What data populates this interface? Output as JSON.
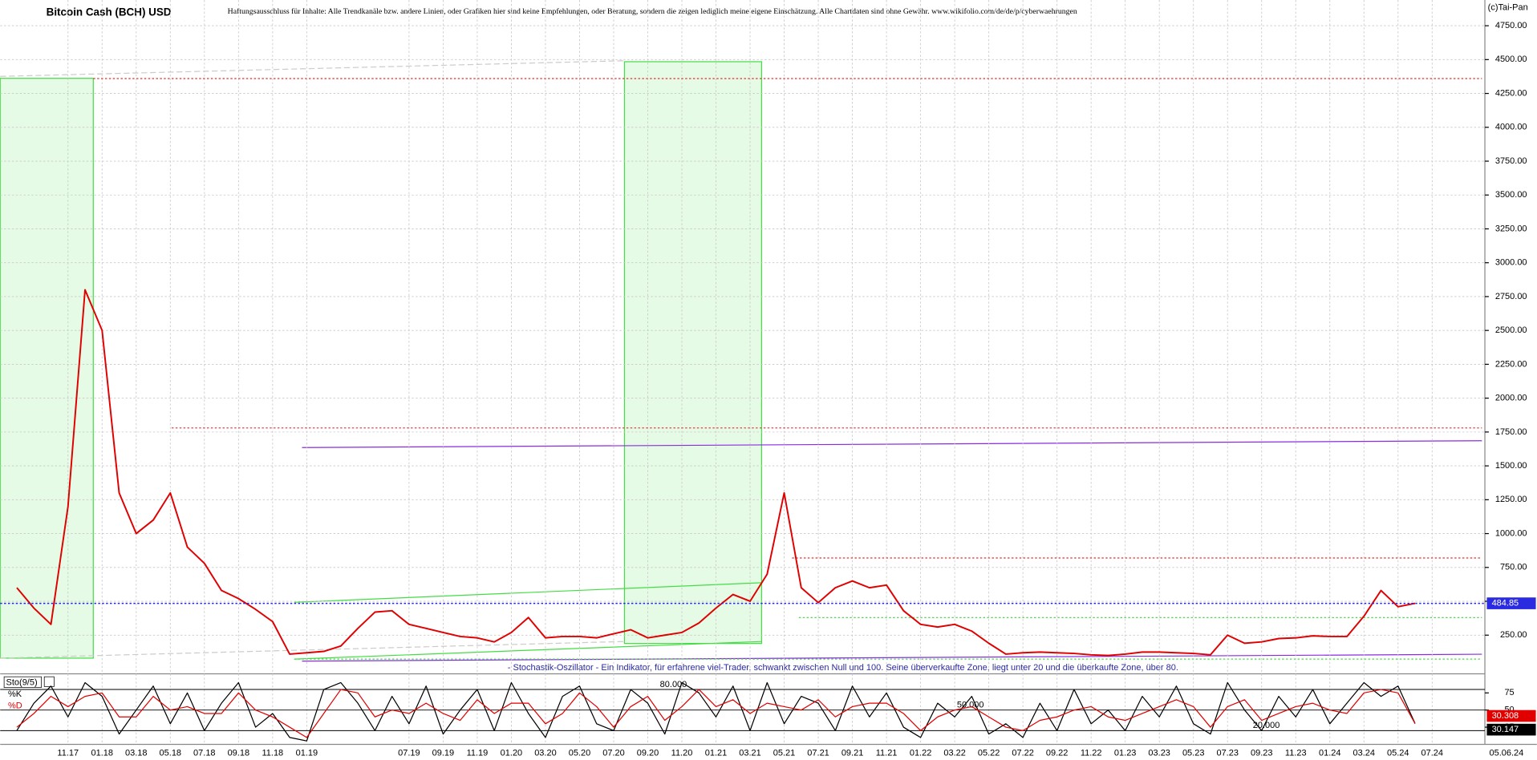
{
  "chart_data": [
    {
      "type": "line",
      "title": "Bitcoin Cash (BCH) USD",
      "disclaimer": "Haftungsausschluss für Inhalte: Alle Trendkanäle bzw. andere Linien, oder Grafiken hier sind keine Empfehlungen, oder Beratung, sondern die zeigen lediglich meine eigene Einschätzung. Alle Chartdaten sind ohne Gewähr.  www.wikifolio.com/de/de/p/cyberwaehrungen",
      "copyright": "(c)Tai-Pan",
      "annotation": "- Stochastik-Oszillator - Ein Indikator, für erfahrene viel-Trader, schwankt zwischen Null und 100. Seine überverkaufte Zone, liegt unter 20 und die überkaufte Zone, über 80.",
      "last_date": "05.06.24",
      "categories": [
        null,
        null,
        null,
        "11.17",
        null,
        "01.18",
        null,
        "03.18",
        null,
        "05.18",
        null,
        "07.18",
        null,
        "09.18",
        null,
        "11.18",
        null,
        "01.19",
        null,
        null,
        null,
        null,
        null,
        "07.19",
        null,
        "09.19",
        null,
        "11.19",
        null,
        "01.20",
        null,
        "03.20",
        null,
        "05.20",
        null,
        "07.20",
        null,
        "09.20",
        null,
        "11.20",
        null,
        "01.21",
        null,
        "03.21",
        null,
        "05.21",
        null,
        "07.21",
        null,
        "09.21",
        null,
        "11.21",
        null,
        "01.22",
        null,
        "03.22",
        null,
        "05.22",
        null,
        "07.22",
        null,
        "09.22",
        null,
        "11.22",
        null,
        "01.23",
        null,
        "03.23",
        null,
        "05.23",
        null,
        "07.23",
        null,
        "09.23",
        null,
        "11.23",
        null,
        "01.24",
        null,
        "03.24",
        null,
        "05.24",
        null,
        "07.24"
      ],
      "series": [
        {
          "color": "#e00000",
          "values": [
            600,
            450,
            330,
            1200,
            2800,
            2500,
            1300,
            1000,
            1100,
            1300,
            900,
            780,
            580,
            520,
            440,
            350,
            110,
            120,
            130,
            170,
            300,
            420,
            430,
            330,
            300,
            270,
            240,
            230,
            200,
            270,
            380,
            230,
            240,
            240,
            230,
            260,
            290,
            230,
            250,
            270,
            340,
            450,
            550,
            500,
            700,
            1300,
            600,
            490,
            600,
            650,
            600,
            620,
            430,
            330,
            310,
            330,
            280,
            190,
            110,
            120,
            125,
            120,
            115,
            105,
            100,
            110,
            125,
            125,
            120,
            115,
            105,
            250,
            190,
            200,
            225,
            230,
            245,
            240,
            240,
            390,
            580,
            460,
            484.85,
            null
          ]
        }
      ],
      "ylim": [
        -50,
        4940
      ],
      "yticks": [
        {
          "value": 250,
          "label": "250.00"
        },
        {
          "value": 500,
          "label": "500.00"
        },
        {
          "value": 750,
          "label": "750.00"
        },
        {
          "value": 1000,
          "label": "1000.00"
        },
        {
          "value": 1250,
          "label": "1250.00"
        },
        {
          "value": 1500,
          "label": "1500.00"
        },
        {
          "value": 1750,
          "label": "1750.00"
        },
        {
          "value": 2000,
          "label": "2000.00"
        },
        {
          "value": 2250,
          "label": "2250.00"
        },
        {
          "value": 2500,
          "label": "2500.00"
        },
        {
          "value": 2750,
          "label": "2750.00"
        },
        {
          "value": 3000,
          "label": "3000.00"
        },
        {
          "value": 3250,
          "label": "3250.00"
        },
        {
          "value": 3500,
          "label": "3500.00"
        },
        {
          "value": 3750,
          "label": "3750.00"
        },
        {
          "value": 4000,
          "label": "4000.00"
        },
        {
          "value": 4250,
          "label": "4250.00"
        },
        {
          "value": 4500,
          "label": "4500.00"
        },
        {
          "value": 4750,
          "label": "4750.00"
        }
      ],
      "levels": [
        {
          "value": 4360,
          "color": "#e03030"
        },
        {
          "value": 1780,
          "color": "#e03030"
        },
        {
          "value": 820,
          "color": "#e03030"
        },
        {
          "value": 380,
          "color": "#40d040"
        }
      ],
      "grid": true
    },
    {
      "type": "line",
      "title": "Sto(9/5)",
      "series": [
        {
          "name": "%K",
          "color": "#000000",
          "values": [
            20,
            60,
            85,
            40,
            90,
            70,
            15,
            50,
            85,
            30,
            75,
            20,
            60,
            90,
            25,
            45,
            10,
            5,
            80,
            90,
            60,
            20,
            70,
            30,
            85,
            15,
            50,
            80,
            20,
            90,
            45,
            10,
            70,
            85,
            30,
            20,
            80,
            60,
            15,
            90,
            75,
            40,
            85,
            20,
            90,
            30,
            70,
            60,
            20,
            85,
            40,
            75,
            25,
            10,
            60,
            40,
            70,
            15,
            30,
            10,
            60,
            20,
            80,
            30,
            50,
            20,
            70,
            40,
            85,
            30,
            15,
            90,
            50,
            20,
            70,
            40,
            80,
            30,
            60,
            90,
            70,
            85,
            30.308,
            null
          ]
        },
        {
          "name": "%D",
          "color": "#e00000",
          "values": [
            25,
            45,
            70,
            55,
            70,
            75,
            40,
            40,
            70,
            50,
            55,
            45,
            45,
            75,
            50,
            40,
            25,
            10,
            45,
            80,
            75,
            40,
            50,
            45,
            60,
            45,
            35,
            65,
            45,
            60,
            60,
            30,
            45,
            75,
            55,
            25,
            55,
            70,
            35,
            55,
            80,
            55,
            65,
            45,
            60,
            55,
            50,
            65,
            40,
            55,
            60,
            60,
            45,
            20,
            40,
            50,
            55,
            40,
            25,
            20,
            35,
            40,
            50,
            55,
            40,
            35,
            45,
            55,
            65,
            55,
            25,
            55,
            65,
            35,
            45,
            55,
            60,
            50,
            45,
            75,
            80,
            75,
            30.147,
            null
          ]
        }
      ],
      "ylim": [
        0,
        100
      ],
      "yticks": [
        75,
        50,
        25
      ],
      "levels": [
        {
          "value": 80,
          "label": "80.000"
        },
        {
          "value": 50,
          "label": "50.000"
        },
        {
          "value": 20,
          "label": "20.000"
        }
      ]
    }
  ]
}
